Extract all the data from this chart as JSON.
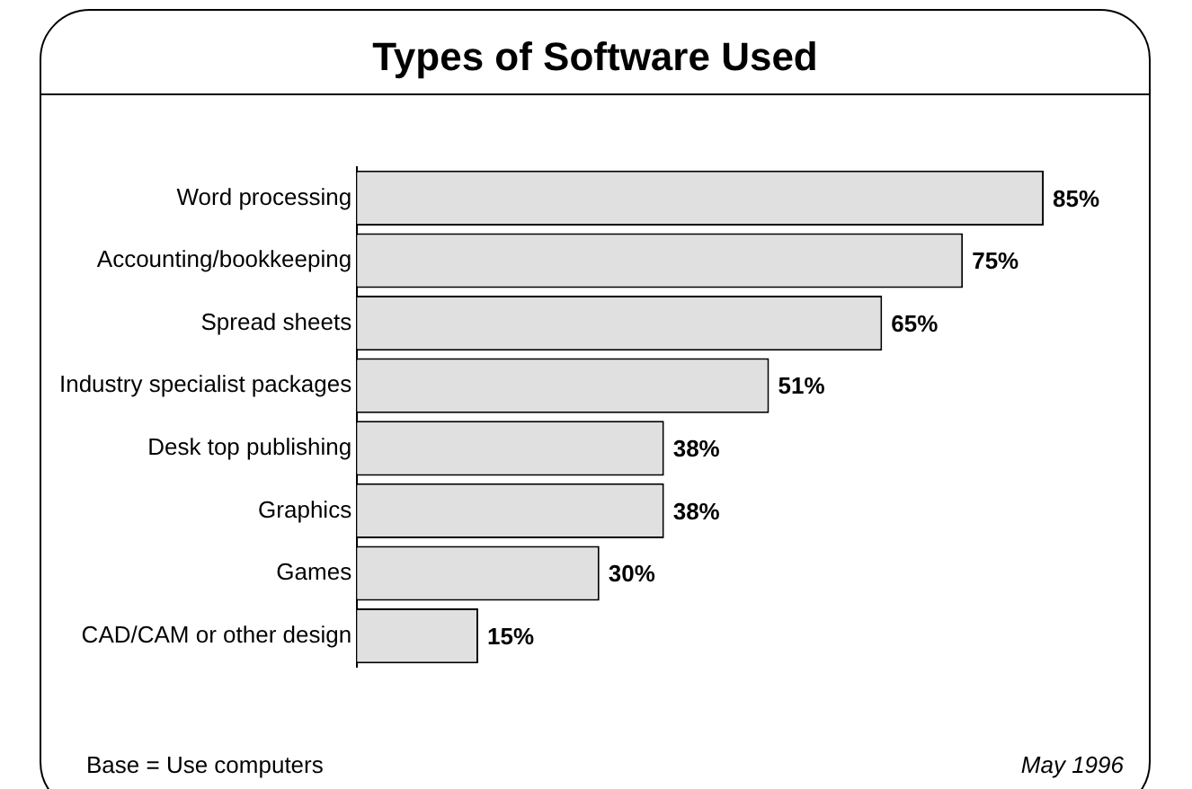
{
  "chart_data": {
    "type": "bar",
    "orientation": "horizontal",
    "title": "Types of Software Used",
    "categories": [
      "Word processing",
      "Accounting/bookkeeping",
      "Spread sheets",
      "Industry specialist packages",
      "Desk top publishing",
      "Graphics",
      "Games",
      "CAD/CAM or other design"
    ],
    "values": [
      85,
      75,
      65,
      51,
      38,
      38,
      30,
      15
    ],
    "color": "#e0e0e0",
    "data_labels": true,
    "value_labels": [
      "85%",
      "75%",
      "65%",
      "51%",
      "38%",
      "38%",
      "30%",
      "15%"
    ],
    "legend": false,
    "annotations": [
      "Base = Use computers",
      "May 1996"
    ]
  }
}
